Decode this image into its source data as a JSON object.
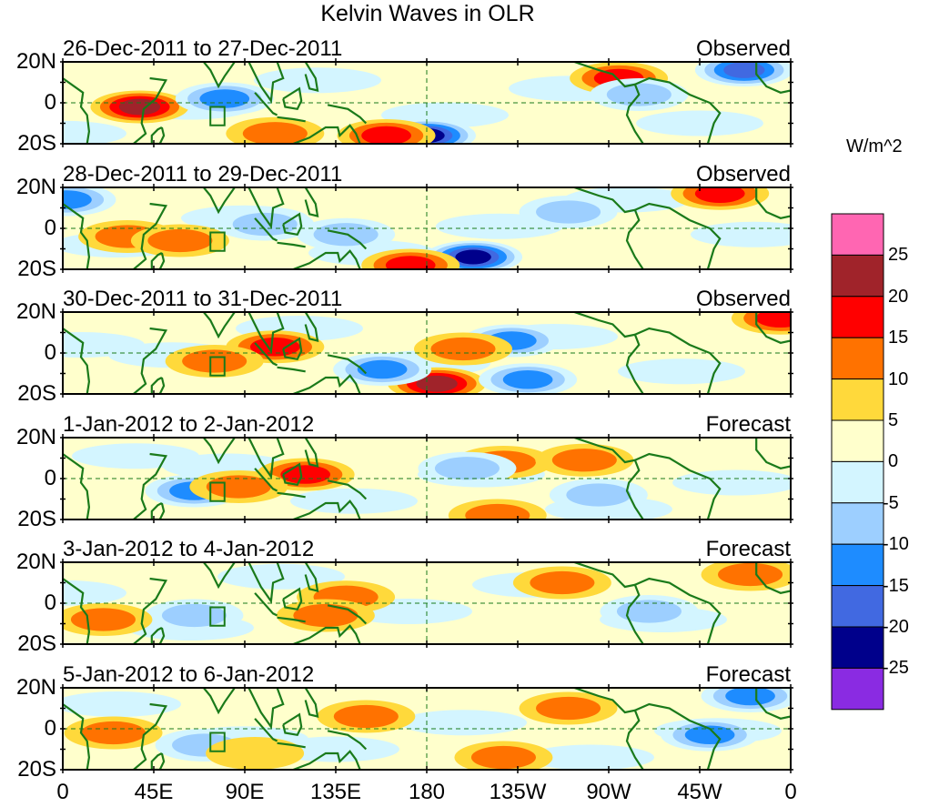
{
  "chart_data": {
    "type": "heatmap",
    "title": "Kelvin Waves in OLR",
    "xlabel": "",
    "ylabel": "",
    "x_tick_labels": [
      "0",
      "45E",
      "90E",
      "135E",
      "180",
      "135W",
      "90W",
      "45W",
      "0"
    ],
    "x_range_deg_east": [
      0,
      360
    ],
    "y_tick_labels": [
      "20N",
      "0",
      "20S"
    ],
    "y_range_deg": [
      -20,
      20
    ],
    "colorbar": {
      "units": "W/m^2",
      "levels": [
        25,
        20,
        15,
        10,
        5,
        0,
        -5,
        -10,
        -15,
        -20,
        -25
      ],
      "colors": [
        "#ff66b2",
        "#a0232a",
        "#ff0000",
        "#ff7200",
        "#ffd93b",
        "#ffffcc",
        "#d3f5ff",
        "#9dcfff",
        "#1e8cff",
        "#4169e1",
        "#00008b",
        "#8a2be2"
      ]
    },
    "panels": [
      {
        "period": "26-Dec-2011 to 27-Dec-2011",
        "type": "Observed",
        "features": [
          {
            "lon": 38,
            "lat": -2,
            "value": 20
          },
          {
            "lon": 80,
            "lat": 2,
            "value": -15
          },
          {
            "lon": 180,
            "lat": -16,
            "value": -25
          },
          {
            "lon": 160,
            "lat": -16,
            "value": 15
          },
          {
            "lon": 275,
            "lat": 12,
            "value": 15
          },
          {
            "lon": 337,
            "lat": 16,
            "value": -20
          },
          {
            "lon": 285,
            "lat": 4,
            "value": -10
          },
          {
            "lon": 105,
            "lat": -15,
            "value": 10
          }
        ]
      },
      {
        "period": "28-Dec-2011 to 29-Dec-2011",
        "type": "Observed",
        "features": [
          {
            "lon": 32,
            "lat": -4,
            "value": 10
          },
          {
            "lon": 58,
            "lat": -6,
            "value": 10
          },
          {
            "lon": 100,
            "lat": 2,
            "value": -10
          },
          {
            "lon": 140,
            "lat": -3,
            "value": -10
          },
          {
            "lon": 203,
            "lat": -14,
            "value": -25
          },
          {
            "lon": 172,
            "lat": -18,
            "value": 15
          },
          {
            "lon": 325,
            "lat": 17,
            "value": 15
          },
          {
            "lon": 2,
            "lat": 14,
            "value": -15
          },
          {
            "lon": 250,
            "lat": 8,
            "value": -10
          }
        ]
      },
      {
        "period": "30-Dec-2011 to 31-Dec-2011",
        "type": "Observed",
        "features": [
          {
            "lon": 105,
            "lat": 3,
            "value": 15
          },
          {
            "lon": 75,
            "lat": -4,
            "value": 10
          },
          {
            "lon": 185,
            "lat": -15,
            "value": 20
          },
          {
            "lon": 222,
            "lat": 6,
            "value": -15
          },
          {
            "lon": 230,
            "lat": -13,
            "value": -15
          },
          {
            "lon": 158,
            "lat": -8,
            "value": -15
          },
          {
            "lon": 198,
            "lat": 2,
            "value": 10
          },
          {
            "lon": 355,
            "lat": 17,
            "value": 15
          }
        ]
      },
      {
        "period": "1-Jan-2012 to 2-Jan-2012",
        "type": "Forecast",
        "features": [
          {
            "lon": 120,
            "lat": 2,
            "value": 15
          },
          {
            "lon": 65,
            "lat": -6,
            "value": -15
          },
          {
            "lon": 87,
            "lat": -4,
            "value": 10
          },
          {
            "lon": 218,
            "lat": 8,
            "value": 10
          },
          {
            "lon": 258,
            "lat": 9,
            "value": 10
          },
          {
            "lon": 200,
            "lat": 5,
            "value": -10
          },
          {
            "lon": 265,
            "lat": -8,
            "value": -10
          },
          {
            "lon": 215,
            "lat": -18,
            "value": 10
          }
        ]
      },
      {
        "period": "3-Jan-2012 to 4-Jan-2012",
        "type": "Forecast",
        "features": [
          {
            "lon": 247,
            "lat": 10,
            "value": 10
          },
          {
            "lon": 140,
            "lat": 3,
            "value": 10
          },
          {
            "lon": 130,
            "lat": -6,
            "value": 10
          },
          {
            "lon": 65,
            "lat": -6,
            "value": -10
          },
          {
            "lon": 290,
            "lat": -4,
            "value": -10
          },
          {
            "lon": 340,
            "lat": 14,
            "value": 10
          },
          {
            "lon": 20,
            "lat": -8,
            "value": 10
          }
        ]
      },
      {
        "period": "5-Jan-2012 to 6-Jan-2012",
        "type": "Forecast",
        "features": [
          {
            "lon": 150,
            "lat": 6,
            "value": 10
          },
          {
            "lon": 218,
            "lat": -14,
            "value": 10
          },
          {
            "lon": 320,
            "lat": -3,
            "value": -15
          },
          {
            "lon": 340,
            "lat": 16,
            "value": -15
          },
          {
            "lon": 70,
            "lat": -8,
            "value": -10
          },
          {
            "lon": 25,
            "lat": -2,
            "value": 10
          },
          {
            "lon": 95,
            "lat": -12,
            "value": 5
          },
          {
            "lon": 250,
            "lat": 10,
            "value": 10
          }
        ]
      }
    ]
  }
}
